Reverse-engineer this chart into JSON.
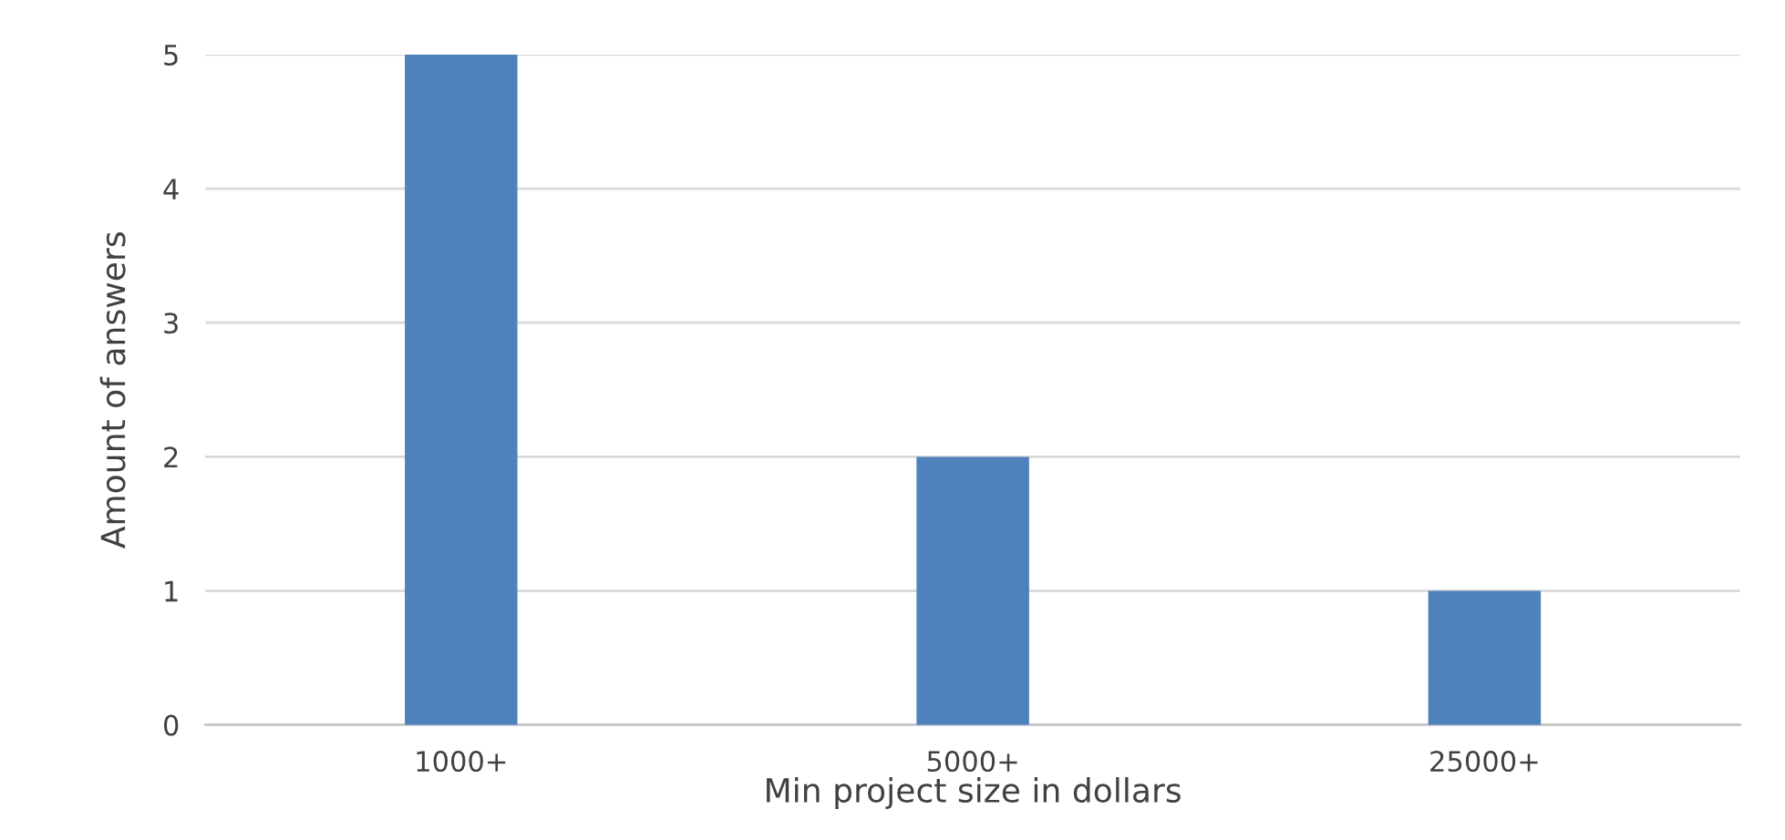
{
  "chart_data": {
    "type": "bar",
    "categories": [
      "1000+",
      "5000+",
      "25000+"
    ],
    "values": [
      5,
      2,
      1
    ],
    "color": "#4f81bd",
    "xlabel": "Min project size in dollars",
    "ylabel": "Amount of answers",
    "ylim": [
      0,
      5
    ],
    "yticks": [
      0,
      1,
      2,
      3,
      4,
      5
    ],
    "grid": "y",
    "legend": false
  }
}
